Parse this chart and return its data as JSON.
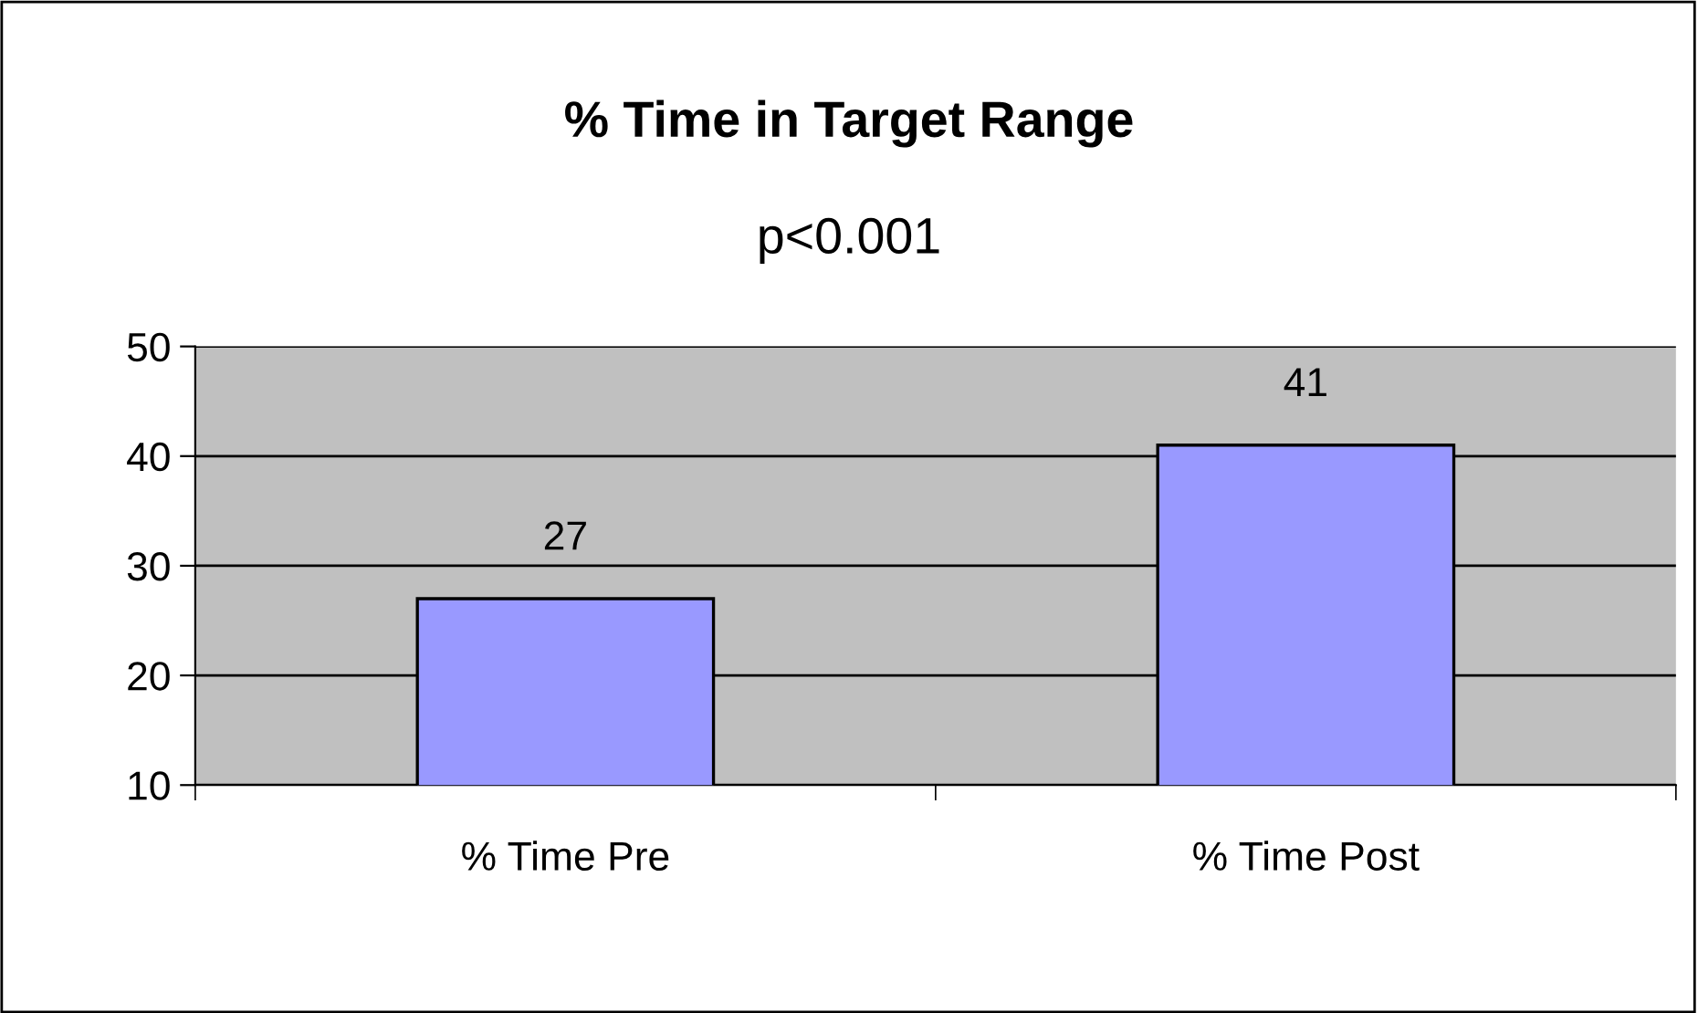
{
  "chart_data": {
    "type": "bar",
    "title": "% Time in Target Range",
    "subtitle": "p<0.001",
    "categories": [
      "% Time Pre",
      "% Time Post"
    ],
    "values": [
      27,
      41
    ],
    "color": "#9999ff",
    "ylim": [
      10,
      50
    ],
    "yticks": [
      10,
      20,
      30,
      40,
      50
    ],
    "grid": "y",
    "data_labels": true,
    "legend": false
  }
}
